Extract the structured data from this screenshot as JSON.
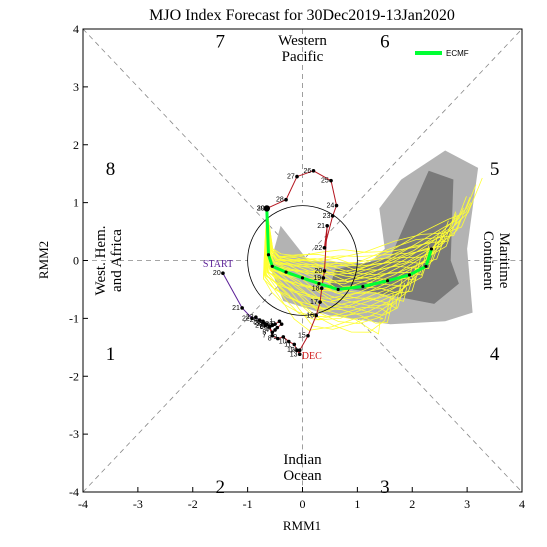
{
  "chart_data": {
    "type": "scatter",
    "title": "MJO Index Forecast for 30Dec2019-13Jan2020",
    "xlabel": "RMM1",
    "ylabel": "RMM2",
    "xlim": [
      -4,
      4
    ],
    "ylim": [
      -4,
      4
    ],
    "xticks": [
      "-4",
      "-3",
      "-2",
      "-1",
      "0",
      "1",
      "2",
      "3",
      "4"
    ],
    "yticks": [
      "-4",
      "-3",
      "-2",
      "-1",
      "0",
      "1",
      "2",
      "3",
      "4"
    ],
    "phases": [
      {
        "label": "1",
        "x": -3.5,
        "y": -1.6
      },
      {
        "label": "2",
        "x": -1.5,
        "y": -3.9
      },
      {
        "label": "3",
        "x": 1.5,
        "y": -3.9
      },
      {
        "label": "4",
        "x": 3.5,
        "y": -1.6
      },
      {
        "label": "5",
        "x": 3.5,
        "y": 1.6
      },
      {
        "label": "6",
        "x": 1.5,
        "y": 3.8
      },
      {
        "label": "7",
        "x": -1.5,
        "y": 3.8
      },
      {
        "label": "8",
        "x": -3.5,
        "y": 1.6
      }
    ],
    "regions": {
      "top": [
        "Western",
        "Pacific"
      ],
      "bottom": [
        "Indian",
        "Ocean"
      ],
      "left": [
        "West. Hem.",
        "and Africa"
      ],
      "right": [
        "Maritime",
        "Continent"
      ]
    },
    "legend": [
      {
        "name": "ECMF",
        "color": "#00ff33",
        "position": "top-right"
      }
    ],
    "annotations": {
      "start": "START",
      "dec": "DEC"
    },
    "observed": [
      {
        "day": "20",
        "x": -1.45,
        "y": -0.22,
        "color": "#5a1e96"
      },
      {
        "day": "21",
        "x": -1.1,
        "y": -0.82,
        "color": "#5a1e96"
      },
      {
        "day": "22",
        "x": -0.92,
        "y": -1.0,
        "color": "#5a1e96"
      },
      {
        "day": "23",
        "x": -0.85,
        "y": -0.98,
        "color": "#5a1e96"
      },
      {
        "day": "24",
        "x": -0.78,
        "y": -1.03,
        "color": "#5a1e96"
      },
      {
        "day": "25",
        "x": -0.72,
        "y": -1.05,
        "color": "#5a1e96"
      },
      {
        "day": "26",
        "x": -0.7,
        "y": -1.08,
        "color": "#5a1e96"
      },
      {
        "day": "27",
        "x": -0.68,
        "y": -1.12,
        "color": "#5a1e96"
      },
      {
        "day": "28",
        "x": -0.65,
        "y": -1.1,
        "color": "#5a1e96"
      },
      {
        "day": "29",
        "x": -0.6,
        "y": -1.14,
        "color": "#5a1e96"
      },
      {
        "day": "30",
        "x": -0.55,
        "y": -1.12,
        "color": "#5a1e96"
      },
      {
        "day": "31",
        "x": -0.5,
        "y": -1.1,
        "color": "#5a1e96"
      },
      {
        "day": "1",
        "x": -0.42,
        "y": -1.05,
        "color": "#b4141e"
      },
      {
        "day": "2",
        "x": -0.38,
        "y": -1.1,
        "color": "#b4141e"
      },
      {
        "day": "3",
        "x": -0.46,
        "y": -1.16,
        "color": "#b4141e"
      },
      {
        "day": "4",
        "x": -0.5,
        "y": -1.2,
        "color": "#b4141e"
      },
      {
        "day": "5",
        "x": -0.55,
        "y": -1.24,
        "color": "#b4141e"
      },
      {
        "day": "6",
        "x": -0.6,
        "y": -1.15,
        "color": "#b4141e"
      },
      {
        "day": "7",
        "x": -0.55,
        "y": -1.3,
        "color": "#b4141e"
      },
      {
        "day": "8",
        "x": -0.45,
        "y": -1.35,
        "color": "#b4141e"
      },
      {
        "day": "9",
        "x": -0.35,
        "y": -1.32,
        "color": "#b4141e"
      },
      {
        "day": "10",
        "x": -0.25,
        "y": -1.4,
        "color": "#b4141e"
      },
      {
        "day": "11",
        "x": -0.15,
        "y": -1.45,
        "color": "#b4141e"
      },
      {
        "day": "12",
        "x": -0.1,
        "y": -1.55,
        "color": "#b4141e"
      },
      {
        "day": "13",
        "x": -0.05,
        "y": -1.62,
        "color": "#b4141e"
      },
      {
        "day": "14",
        "x": -0.05,
        "y": -1.55,
        "color": "#b4141e"
      },
      {
        "day": "15",
        "x": 0.1,
        "y": -1.3,
        "color": "#b4141e"
      },
      {
        "day": "16",
        "x": 0.25,
        "y": -0.95,
        "color": "#b4141e"
      },
      {
        "day": "17",
        "x": 0.32,
        "y": -0.72,
        "color": "#b4141e"
      },
      {
        "day": "18",
        "x": 0.35,
        "y": -0.48,
        "color": "#b4141e"
      },
      {
        "day": "19",
        "x": 0.38,
        "y": -0.3,
        "color": "#b4141e"
      },
      {
        "day": "20",
        "x": 0.4,
        "y": -0.18,
        "color": "#b4141e"
      },
      {
        "day": "21",
        "x": 0.45,
        "y": 0.6,
        "color": "#b4141e"
      },
      {
        "day": "22",
        "x": 0.4,
        "y": 0.22,
        "color": "#b4141e"
      },
      {
        "day": "23",
        "x": 0.55,
        "y": 0.77,
        "color": "#b4141e"
      },
      {
        "day": "24",
        "x": 0.62,
        "y": 0.95,
        "color": "#b4141e"
      },
      {
        "day": "25",
        "x": 0.52,
        "y": 1.38,
        "color": "#b4141e"
      },
      {
        "day": "26",
        "x": 0.2,
        "y": 1.55,
        "color": "#b4141e"
      },
      {
        "day": "27",
        "x": -0.1,
        "y": 1.45,
        "color": "#b4141e"
      },
      {
        "day": "28",
        "x": -0.3,
        "y": 1.05,
        "color": "#b4141e"
      },
      {
        "day": "29",
        "x": -0.65,
        "y": 0.9,
        "color": "#b4141e"
      },
      {
        "day": "30",
        "x": -0.65,
        "y": 0.9,
        "color": "#b4141e"
      }
    ],
    "ensemble_mean": [
      {
        "x": -0.65,
        "y": 0.9
      },
      {
        "x": -0.62,
        "y": 0.1
      },
      {
        "x": -0.55,
        "y": -0.1
      },
      {
        "x": -0.3,
        "y": -0.2
      },
      {
        "x": 0.0,
        "y": -0.3
      },
      {
        "x": 0.3,
        "y": -0.4
      },
      {
        "x": 0.65,
        "y": -0.5
      },
      {
        "x": 1.1,
        "y": -0.45
      },
      {
        "x": 1.55,
        "y": -0.35
      },
      {
        "x": 1.95,
        "y": -0.25
      },
      {
        "x": 2.25,
        "y": -0.1
      },
      {
        "x": 2.35,
        "y": 0.2
      }
    ]
  }
}
